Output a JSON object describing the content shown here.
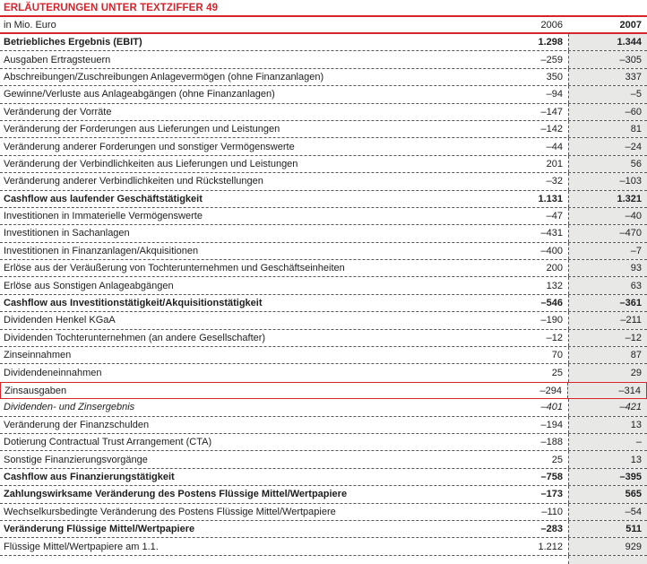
{
  "title": "ERLÄUTERUNGEN UNTER TEXTZIFFER 49",
  "colors": {
    "accent_red": "#d6252d",
    "column_2007_bg": "#e8e8e6"
  },
  "table": {
    "unit_label": "in Mio. Euro",
    "col_2006": "2006",
    "col_2007": "2007",
    "rows": [
      {
        "label": "Betriebliches Ergebnis (EBIT)",
        "v2006": "1.298",
        "v2007": "1.344",
        "bold": true
      },
      {
        "label": "Ausgaben Ertragsteuern",
        "v2006": "–259",
        "v2007": "–305"
      },
      {
        "label": "Abschreibungen/Zuschreibungen Anlagevermögen (ohne Finanzanlagen)",
        "v2006": "350",
        "v2007": "337"
      },
      {
        "label": "Gewinne/Verluste aus Anlageabgängen (ohne Finanzanlagen)",
        "v2006": "–94",
        "v2007": "–5"
      },
      {
        "label": "Veränderung der Vorräte",
        "v2006": "–147",
        "v2007": "–60"
      },
      {
        "label": "Veränderung der Forderungen aus Lieferungen und Leistungen",
        "v2006": "–142",
        "v2007": "81"
      },
      {
        "label": "Veränderung anderer Forderungen und sonstiger Vermögenswerte",
        "v2006": "–44",
        "v2007": "–24"
      },
      {
        "label": "Veränderung der Verbindlichkeiten aus Lieferungen und Leistungen",
        "v2006": "201",
        "v2007": "56"
      },
      {
        "label": "Veränderung anderer Verbindlichkeiten und Rückstellungen",
        "v2006": "–32",
        "v2007": "–103"
      },
      {
        "label": "Cashflow aus laufender Geschäftstätigkeit",
        "v2006": "1.131",
        "v2007": "1.321",
        "bold": true
      },
      {
        "label": "Investitionen in Immaterielle Vermögenswerte",
        "v2006": "–47",
        "v2007": "–40"
      },
      {
        "label": "Investitionen in Sachanlagen",
        "v2006": "–431",
        "v2007": "–470"
      },
      {
        "label": "Investitionen in Finanzanlagen/Akquisitionen",
        "v2006": "–400",
        "v2007": "–7"
      },
      {
        "label": "Erlöse aus der Veräußerung von Tochterunternehmen und Geschäftseinheiten",
        "v2006": "200",
        "v2007": "93"
      },
      {
        "label": "Erlöse aus Sonstigen Anlageabgängen",
        "v2006": "132",
        "v2007": "63"
      },
      {
        "label": "Cashflow aus Investitionstätigkeit/Akquisitionstätigkeit",
        "v2006": "–546",
        "v2007": "–361",
        "bold": true
      },
      {
        "label": "Dividenden Henkel KGaA",
        "v2006": "–190",
        "v2007": "–211"
      },
      {
        "label": "Dividenden Tochterunternehmen (an andere Gesellschafter)",
        "v2006": "–12",
        "v2007": "–12"
      },
      {
        "label": "Zinseinnahmen",
        "v2006": "70",
        "v2007": "87"
      },
      {
        "label": "Dividendeneinnahmen",
        "v2006": "25",
        "v2007": "29"
      },
      {
        "label": "Zinsausgaben",
        "v2006": "–294",
        "v2007": "–314",
        "highlight": true
      },
      {
        "label": "Dividenden- und Zinsergebnis",
        "v2006": "–401",
        "v2007": "–421",
        "italic": true
      },
      {
        "label": "Veränderung der Finanzschulden",
        "v2006": "–194",
        "v2007": "13"
      },
      {
        "label": "Dotierung Contractual Trust Arrangement (CTA)",
        "v2006": "–188",
        "v2007": "–"
      },
      {
        "label": "Sonstige Finanzierungsvorgänge",
        "v2006": "25",
        "v2007": "13"
      },
      {
        "label": "Cashflow aus Finanzierungstätigkeit",
        "v2006": "–758",
        "v2007": "–395",
        "bold": true
      },
      {
        "label": "Zahlungswirksame Veränderung des Postens Flüssige Mittel/Wertpapiere",
        "v2006": "–173",
        "v2007": "565",
        "bold": true
      },
      {
        "label": "Wechselkursbedingte Veränderung des Postens Flüssige Mittel/Wertpapiere",
        "v2006": "–110",
        "v2007": "–54"
      },
      {
        "label": "Veränderung Flüssige Mittel/Wertpapiere",
        "v2006": "–283",
        "v2007": "511",
        "bold": true
      },
      {
        "label": "Flüssige Mittel/Wertpapiere am 1.1.",
        "v2006": "1.212",
        "v2007": "929"
      }
    ]
  }
}
